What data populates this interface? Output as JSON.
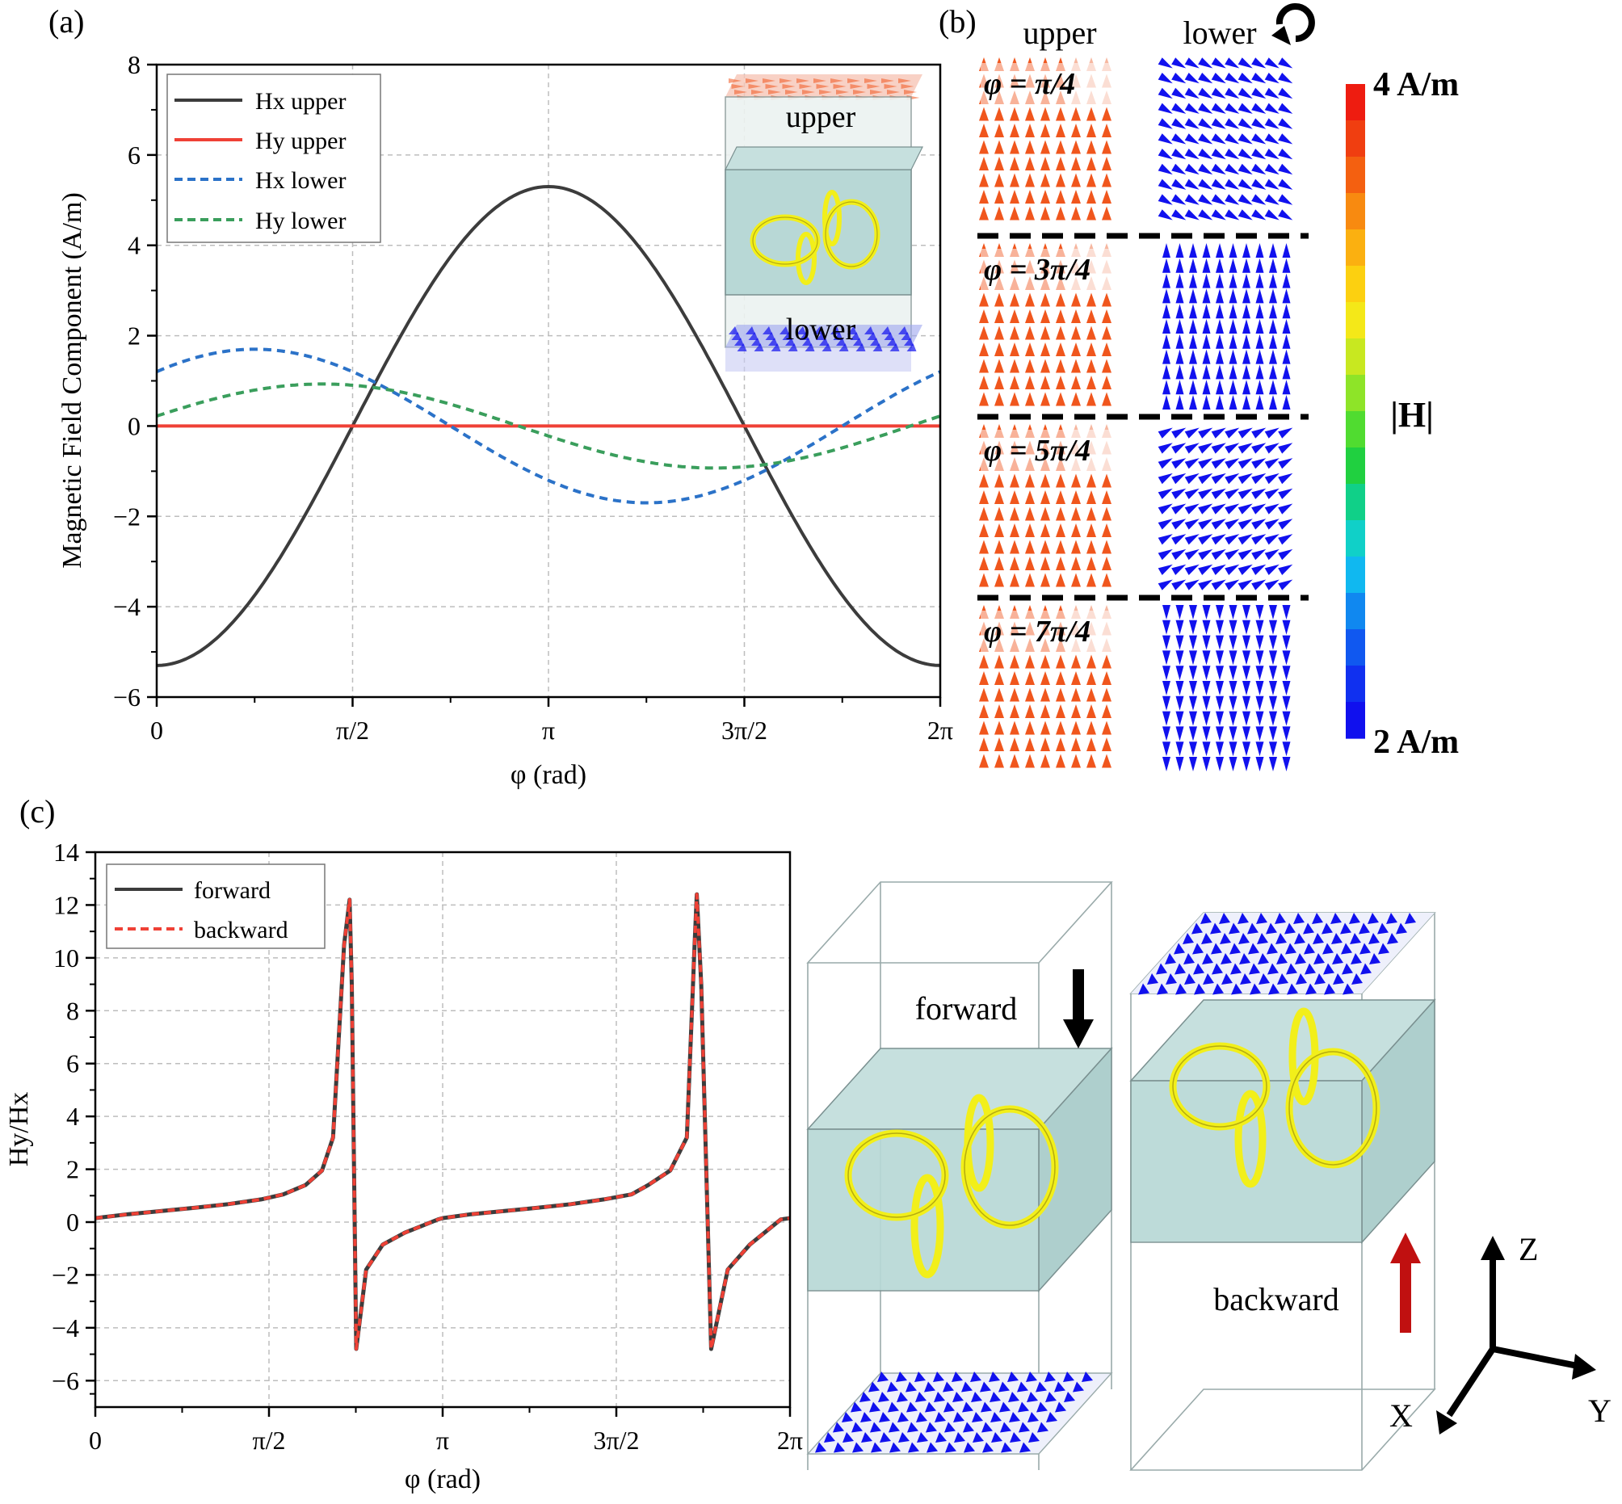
{
  "colors": {
    "black_line": "#3c3c3c",
    "red_line": "#ef4136",
    "blue_dash": "#2b72c8",
    "green_dash": "#3a9e5c",
    "arrow_orange": "#f0561d",
    "arrow_blue": "#1111ee",
    "ring_yellow": "#f2ef1a",
    "box_teal": "#b8d8d6",
    "grid": "#bdbdbd",
    "arrow_red": "#c01010"
  },
  "icons": {
    "rotation": "rotation-arrow-icon",
    "forward": "down-arrow-icon",
    "backward": "up-arrow-icon"
  },
  "panels": {
    "a": {
      "label": "(a)",
      "inset": {
        "upper": "upper",
        "lower": "lower"
      }
    },
    "b": {
      "label": "(b)",
      "col_upper": "upper",
      "col_lower": "lower",
      "rows": [
        {
          "phi": "φ = π/4",
          "lower_angle_deg": -30
        },
        {
          "phi": "φ = 3π/4",
          "lower_angle_deg": 90
        },
        {
          "phi": "φ = 5π/4",
          "lower_angle_deg": 30
        },
        {
          "phi": "φ = 7π/4",
          "lower_angle_deg": -90
        }
      ],
      "colorbar": {
        "max_label": "4 A/m",
        "min_label": "2 A/m",
        "title": "|H|",
        "colors": [
          "#ee1c10",
          "#f03e10",
          "#f46010",
          "#f88a10",
          "#fbb010",
          "#fcd010",
          "#f4e818",
          "#c8e820",
          "#8ee428",
          "#50dc30",
          "#20d040",
          "#10d088",
          "#10d0c8",
          "#10b8f0",
          "#1088f0",
          "#1058f0",
          "#1030f0",
          "#1010ee"
        ]
      }
    },
    "c": {
      "label": "(c)",
      "forward_label": "forward",
      "backward_label": "backward",
      "axes": {
        "z": "Z",
        "x": "X",
        "y": "Y"
      }
    }
  },
  "chart_data": [
    {
      "id": "a",
      "type": "line",
      "xlabel": "φ (rad)",
      "ylabel": "Magnetic Field Component (A/m)",
      "xlim": [
        0,
        6.2832
      ],
      "ylim": [
        -6,
        8
      ],
      "xticks": [
        0,
        1.5708,
        3.1416,
        4.7124,
        6.2832
      ],
      "xtick_labels": [
        "0",
        "π/2",
        "π",
        "3π/2",
        "2π"
      ],
      "yticks": [
        -6,
        -4,
        -2,
        0,
        2,
        4,
        6,
        8
      ],
      "ytick_labels": [
        "−6",
        "−4",
        "−2",
        "0",
        "2",
        "4",
        "6",
        "8"
      ],
      "grid": true,
      "legend": "top-left",
      "series": [
        {
          "name": "Hx upper",
          "formula": "-5.3*cos(x)",
          "style": "solid",
          "color": "#3c3c3c"
        },
        {
          "name": "Hy upper",
          "formula": "0",
          "style": "solid",
          "color": "#ef4136"
        },
        {
          "name": "Hx lower",
          "formula": "1.7*cos(x-0.785)",
          "style": "dashed",
          "color": "#2b72c8"
        },
        {
          "name": "Hy lower",
          "formula": "0.93*sin(x+0.24)",
          "style": "dashed",
          "color": "#3a9e5c"
        }
      ],
      "x": [
        0.0,
        0.3927,
        0.7854,
        1.1781,
        1.5708,
        1.9635,
        2.3562,
        2.7489,
        3.1416,
        3.5343,
        3.927,
        4.3197,
        4.7124,
        5.1051,
        5.4978,
        5.8905,
        6.2832
      ],
      "values": {
        "Hx upper": [
          -5.3,
          -4.9,
          -3.75,
          -2.03,
          0.0,
          2.03,
          3.75,
          4.9,
          5.3,
          4.9,
          3.75,
          2.03,
          0.0,
          -2.03,
          -3.75,
          -4.9,
          -5.3
        ],
        "Hy upper": [
          0,
          0,
          0,
          0,
          0,
          0,
          0,
          0,
          0,
          0,
          0,
          0,
          0,
          0,
          0,
          0,
          0
        ],
        "Hx lower": [
          1.2,
          1.57,
          1.7,
          1.57,
          1.2,
          0.65,
          0.0,
          -0.65,
          -1.2,
          -1.57,
          -1.7,
          -1.57,
          -1.2,
          -0.65,
          0.0,
          0.65,
          1.2
        ],
        "Hy lower": [
          0.22,
          0.55,
          0.8,
          0.92,
          0.9,
          0.71,
          0.43,
          0.1,
          -0.22,
          -0.55,
          -0.8,
          -0.92,
          -0.9,
          -0.71,
          -0.43,
          -0.1,
          0.22
        ]
      }
    },
    {
      "id": "c",
      "type": "line",
      "xlabel": "φ (rad)",
      "ylabel": "Hy/Hx",
      "xlim": [
        0,
        6.2832
      ],
      "ylim": [
        -7,
        14
      ],
      "xticks": [
        0,
        1.5708,
        3.1416,
        4.7124,
        6.2832
      ],
      "xtick_labels": [
        "0",
        "π/2",
        "π",
        "3π/2",
        "2π"
      ],
      "yticks": [
        -6,
        -4,
        -2,
        0,
        2,
        4,
        6,
        8,
        10,
        12,
        14
      ],
      "ytick_labels": [
        "−6",
        "−4",
        "−2",
        "0",
        "2",
        "4",
        "6",
        "8",
        "10",
        "12",
        "14"
      ],
      "grid": true,
      "legend": "top-left",
      "series": [
        {
          "name": "forward",
          "style": "solid",
          "color": "#3c3c3c"
        },
        {
          "name": "backward",
          "style": "dashed",
          "color": "#ef4136"
        }
      ],
      "x": [
        0.0,
        0.3,
        0.6,
        0.9,
        1.2,
        1.5,
        1.7,
        1.9,
        2.05,
        2.15,
        2.25,
        2.3,
        2.32,
        2.36,
        2.45,
        2.6,
        2.8,
        3.1,
        3.14,
        3.4,
        3.7,
        4.0,
        4.3,
        4.6,
        4.85,
        5.0,
        5.2,
        5.35,
        5.42,
        5.44,
        5.48,
        5.57,
        5.72,
        5.92,
        6.2,
        6.2832
      ],
      "values": {
        "forward": [
          0.15,
          0.3,
          0.42,
          0.54,
          0.68,
          0.86,
          1.05,
          1.4,
          1.95,
          3.2,
          10.5,
          12.2,
          9.0,
          -4.8,
          -1.8,
          -0.85,
          -0.4,
          0.1,
          0.15,
          0.3,
          0.42,
          0.54,
          0.68,
          0.86,
          1.05,
          1.4,
          1.95,
          3.2,
          10.5,
          12.4,
          9.0,
          -4.8,
          -1.8,
          -0.85,
          0.1,
          0.15
        ],
        "backward": [
          0.15,
          0.3,
          0.42,
          0.54,
          0.68,
          0.86,
          1.05,
          1.4,
          1.95,
          3.2,
          10.5,
          12.2,
          9.0,
          -4.8,
          -1.8,
          -0.85,
          -0.4,
          0.1,
          0.15,
          0.3,
          0.42,
          0.54,
          0.68,
          0.86,
          1.05,
          1.4,
          1.95,
          3.2,
          10.5,
          12.4,
          9.0,
          -4.8,
          -1.8,
          -0.85,
          0.1,
          0.15
        ]
      }
    }
  ]
}
